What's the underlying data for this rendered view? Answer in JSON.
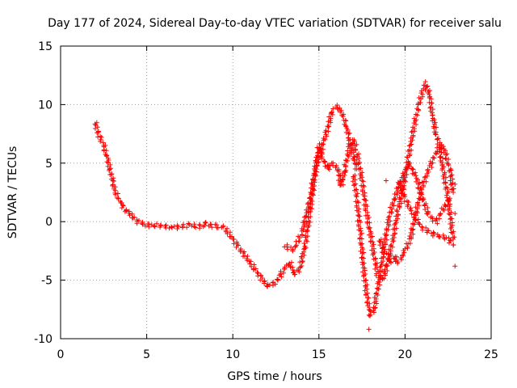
{
  "chart_data": {
    "type": "scatter",
    "title": "Day 177 of 2024, Sidereal Day-to-day VTEC variation (SDTVAR) for receiver salu",
    "xlabel": "GPS time / hours",
    "ylabel": "SDTVAR / TECUs",
    "xlim": [
      0,
      25
    ],
    "ylim": [
      -10,
      15
    ],
    "xticks": [
      0,
      5,
      10,
      15,
      20,
      25
    ],
    "yticks": [
      -10,
      -5,
      0,
      5,
      10,
      15
    ],
    "grid": true,
    "marker": "+",
    "color": "#ff0000",
    "series": [
      {
        "name": "main trace",
        "x": [
          2.0,
          2.2,
          2.5,
          2.8,
          3.0,
          3.2,
          3.5,
          3.8,
          4.1,
          4.5,
          5.0,
          5.5,
          6.0,
          6.5,
          7.0,
          7.5,
          8.0,
          8.5,
          9.0,
          9.5,
          10.0,
          10.5,
          11.0,
          11.5,
          12.0,
          12.5,
          13.0,
          13.3,
          13.6,
          13.9,
          14.2,
          14.5,
          14.8,
          15.0,
          15.2,
          15.5,
          15.8,
          16.1,
          16.3,
          16.5,
          16.8,
          17.0,
          17.2,
          17.5,
          17.8,
          18.1,
          18.4,
          18.7,
          19.0,
          19.3,
          19.6,
          19.9,
          20.2,
          20.5,
          20.8,
          21.0,
          21.2,
          21.4,
          21.6,
          21.8,
          22.0,
          22.2,
          22.5,
          22.8
        ],
        "y": [
          8.5,
          7.5,
          6.5,
          5.0,
          3.5,
          2.5,
          1.5,
          1.0,
          0.5,
          0.0,
          -0.3,
          -0.3,
          -0.4,
          -0.5,
          -0.4,
          -0.3,
          -0.4,
          -0.2,
          -0.4,
          -0.5,
          -1.5,
          -2.5,
          -3.5,
          -4.5,
          -5.5,
          -5.2,
          -4.0,
          -3.5,
          -4.5,
          -4.0,
          -2.0,
          1.0,
          4.5,
          6.5,
          5.5,
          4.5,
          5.0,
          4.5,
          3.0,
          4.5,
          6.5,
          7.0,
          6.0,
          3.5,
          0.5,
          -2.0,
          -4.5,
          -5.0,
          -3.5,
          -1.5,
          1.0,
          3.0,
          5.5,
          8.0,
          10.0,
          11.0,
          11.8,
          11.0,
          9.0,
          7.5,
          6.5,
          4.5,
          2.0,
          -1.5
        ]
      },
      {
        "name": "upper branch",
        "x": [
          13.0,
          13.5,
          14.0,
          14.5,
          14.8,
          15.0,
          15.5,
          15.8,
          16.0,
          16.3,
          16.5,
          16.8,
          17.0,
          17.2
        ],
        "y": [
          -2.0,
          -2.5,
          -1.0,
          2.0,
          4.5,
          5.5,
          8.0,
          9.5,
          9.8,
          9.5,
          8.5,
          7.0,
          5.5,
          4.5
        ]
      },
      {
        "name": "dip branch",
        "x": [
          17.0,
          17.2,
          17.4,
          17.6,
          17.8,
          18.0,
          18.2,
          18.5,
          18.8,
          19.1,
          19.5,
          19.8,
          20.2,
          20.6,
          21.0,
          21.4,
          21.8,
          22.2,
          22.6
        ],
        "y": [
          4.0,
          2.0,
          -1.0,
          -4.0,
          -6.5,
          -8.0,
          -7.5,
          -5.0,
          -2.0,
          0.5,
          2.5,
          3.5,
          5.0,
          4.0,
          2.0,
          0.5,
          0.0,
          1.0,
          2.0
        ]
      },
      {
        "name": "lower branch",
        "x": [
          18.5,
          18.8,
          19.0,
          19.2,
          19.4,
          19.6,
          19.8,
          20.0,
          20.3,
          20.6,
          21.0,
          21.4,
          21.8,
          22.2,
          22.6,
          22.8
        ],
        "y": [
          -1.5,
          -2.5,
          -3.0,
          -3.5,
          -3.0,
          -3.5,
          -3.0,
          -2.5,
          -1.5,
          0.5,
          3.0,
          4.5,
          6.0,
          6.5,
          4.5,
          2.5
        ]
      },
      {
        "name": "late branch",
        "x": [
          19.6,
          20.0,
          20.5,
          21.0,
          21.5,
          22.0,
          22.5,
          22.8
        ],
        "y": [
          3.5,
          2.0,
          0.5,
          -0.5,
          -1.0,
          -1.2,
          -1.5,
          -2.0
        ]
      },
      {
        "name": "isolated points",
        "x": [
          17.9,
          18.9,
          22.9,
          22.9,
          22.9
        ],
        "y": [
          -9.2,
          3.5,
          3.2,
          0.7,
          -3.8
        ]
      }
    ]
  }
}
